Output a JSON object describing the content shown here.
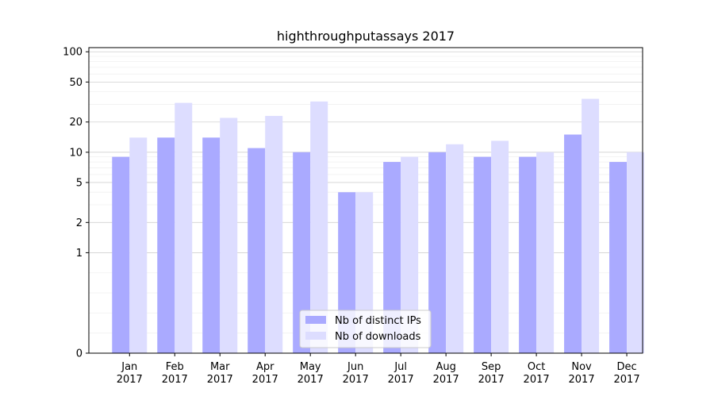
{
  "chart_data": {
    "type": "bar",
    "title": "highthroughputassays 2017",
    "xlabel": "",
    "ylabel": "",
    "categories": [
      [
        "Jan",
        "2017"
      ],
      [
        "Feb",
        "2017"
      ],
      [
        "Mar",
        "2017"
      ],
      [
        "Apr",
        "2017"
      ],
      [
        "May",
        "2017"
      ],
      [
        "Jun",
        "2017"
      ],
      [
        "Jul",
        "2017"
      ],
      [
        "Aug",
        "2017"
      ],
      [
        "Sep",
        "2017"
      ],
      [
        "Oct",
        "2017"
      ],
      [
        "Nov",
        "2017"
      ],
      [
        "Dec",
        "2017"
      ]
    ],
    "series": [
      {
        "name": "Nb of distinct IPs",
        "color": "#aaaaff",
        "values": [
          9,
          14,
          14,
          11,
          10,
          4,
          8,
          10,
          9,
          9,
          15,
          8
        ]
      },
      {
        "name": "Nb of downloads",
        "color": "#ddddff",
        "values": [
          14,
          31,
          22,
          23,
          32,
          4,
          9,
          12,
          13,
          10,
          34,
          10
        ]
      }
    ],
    "yscale": "symlog",
    "ylim": [
      0,
      110
    ],
    "yticks": [
      0,
      1,
      2,
      5,
      10,
      20,
      50,
      100
    ],
    "ytick_labels": [
      "0",
      "1",
      "2",
      "5",
      "10",
      "20",
      "50",
      "100"
    ],
    "grid": true,
    "legend_position": "lower-center"
  }
}
